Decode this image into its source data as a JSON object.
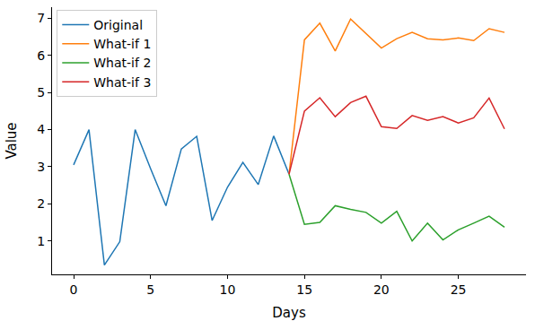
{
  "chart_data": {
    "type": "line",
    "x_label": "Days",
    "y_label": "Value",
    "x": [
      0,
      1,
      2,
      3,
      4,
      5,
      6,
      7,
      8,
      9,
      10,
      11,
      12,
      13,
      14,
      15,
      16,
      17,
      18,
      19,
      20,
      21,
      22,
      23,
      24,
      25,
      26,
      27,
      28
    ],
    "series": [
      {
        "name": "Original",
        "color": "#1f77b4",
        "values": [
          3.05,
          4.0,
          0.35,
          0.98,
          4.0,
          2.95,
          1.95,
          3.48,
          3.82,
          1.55,
          2.45,
          3.12,
          2.52,
          3.83,
          2.8,
          null,
          null,
          null,
          null,
          null,
          null,
          null,
          null,
          null,
          null,
          null,
          null,
          null,
          null
        ]
      },
      {
        "name": "What-if 1",
        "color": "#ff7f0e",
        "values": [
          null,
          null,
          null,
          null,
          null,
          null,
          null,
          null,
          null,
          null,
          null,
          null,
          null,
          null,
          2.8,
          6.42,
          6.87,
          6.12,
          6.98,
          6.6,
          6.2,
          6.45,
          6.62,
          6.45,
          6.42,
          6.47,
          6.4,
          6.72,
          6.62
        ]
      },
      {
        "name": "What-if 2",
        "color": "#2ca02c",
        "values": [
          null,
          null,
          null,
          null,
          null,
          null,
          null,
          null,
          null,
          null,
          null,
          null,
          null,
          null,
          2.8,
          1.45,
          1.5,
          1.95,
          1.85,
          1.77,
          1.48,
          1.8,
          1.0,
          1.48,
          1.03,
          1.3,
          1.48,
          1.67,
          1.37
        ]
      },
      {
        "name": "What-if 3",
        "color": "#d62728",
        "values": [
          null,
          null,
          null,
          null,
          null,
          null,
          null,
          null,
          null,
          null,
          null,
          null,
          null,
          null,
          2.8,
          4.5,
          4.86,
          4.35,
          4.73,
          4.9,
          4.08,
          4.03,
          4.38,
          4.25,
          4.35,
          4.18,
          4.32,
          4.85,
          4.02
        ]
      }
    ],
    "xlim": [
      -1.4,
      29.4
    ],
    "xticks": [
      0,
      5,
      10,
      15,
      20,
      25
    ],
    "ylim": [
      0.1,
      7.3
    ],
    "yticks": [
      1,
      2,
      3,
      4,
      5,
      6,
      7
    ],
    "grid": false,
    "legend": "upper left"
  }
}
